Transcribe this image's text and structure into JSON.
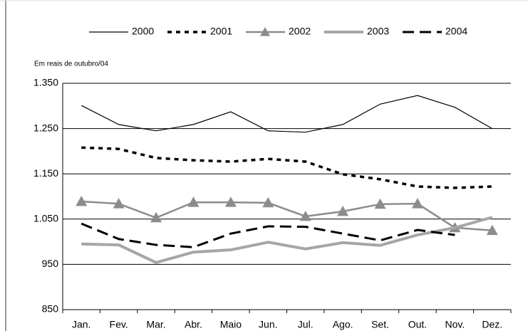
{
  "chart_data": {
    "type": "line",
    "subtitle": "Em reais de outubro/04",
    "categories": [
      "Jan.",
      "Fev.",
      "Mar.",
      "Abr.",
      "Maio",
      "Jun.",
      "Jul.",
      "Ago.",
      "Set.",
      "Out.",
      "Nov.",
      "Dez."
    ],
    "series": [
      {
        "name": "2000",
        "color": "#000000",
        "line_style": "solid",
        "line_width": 1.2,
        "values": [
          1301,
          1259,
          1245,
          1259,
          1287,
          1245,
          1242,
          1259,
          1304,
          1323,
          1297,
          1250
        ]
      },
      {
        "name": "2001",
        "color": "#000000",
        "line_style": "dotted",
        "line_width": 3.5,
        "values": [
          1208,
          1205,
          1185,
          1180,
          1177,
          1183,
          1177,
          1149,
          1138,
          1122,
          1119,
          1122
        ]
      },
      {
        "name": "2002",
        "color": "#8c8c8c",
        "line_style": "solid",
        "line_width": 2.5,
        "marker": "triangle",
        "values": [
          1089,
          1084,
          1053,
          1087,
          1087,
          1086,
          1056,
          1067,
          1083,
          1084,
          1031,
          1025
        ]
      },
      {
        "name": "2003",
        "color": "#a6a6a6",
        "line_style": "solid",
        "line_width": 4,
        "values": [
          995,
          993,
          954,
          977,
          982,
          999,
          984,
          998,
          992,
          1015,
          1031,
          1054
        ]
      },
      {
        "name": "2004",
        "color": "#000000",
        "line_style": "dashed",
        "line_width": 3,
        "values": [
          1040,
          1006,
          993,
          988,
          1018,
          1034,
          1033,
          1018,
          1003,
          1026,
          1015,
          null
        ]
      }
    ],
    "ylim": [
      850,
      1350
    ],
    "yticks": [
      {
        "value": 850,
        "label": "850"
      },
      {
        "value": 950,
        "label": "950"
      },
      {
        "value": 1050,
        "label": "1.050"
      },
      {
        "value": 1150,
        "label": "1.150"
      },
      {
        "value": 1250,
        "label": "1.250"
      },
      {
        "value": 1350,
        "label": "1.350"
      }
    ],
    "grid": true,
    "legend": "top"
  }
}
